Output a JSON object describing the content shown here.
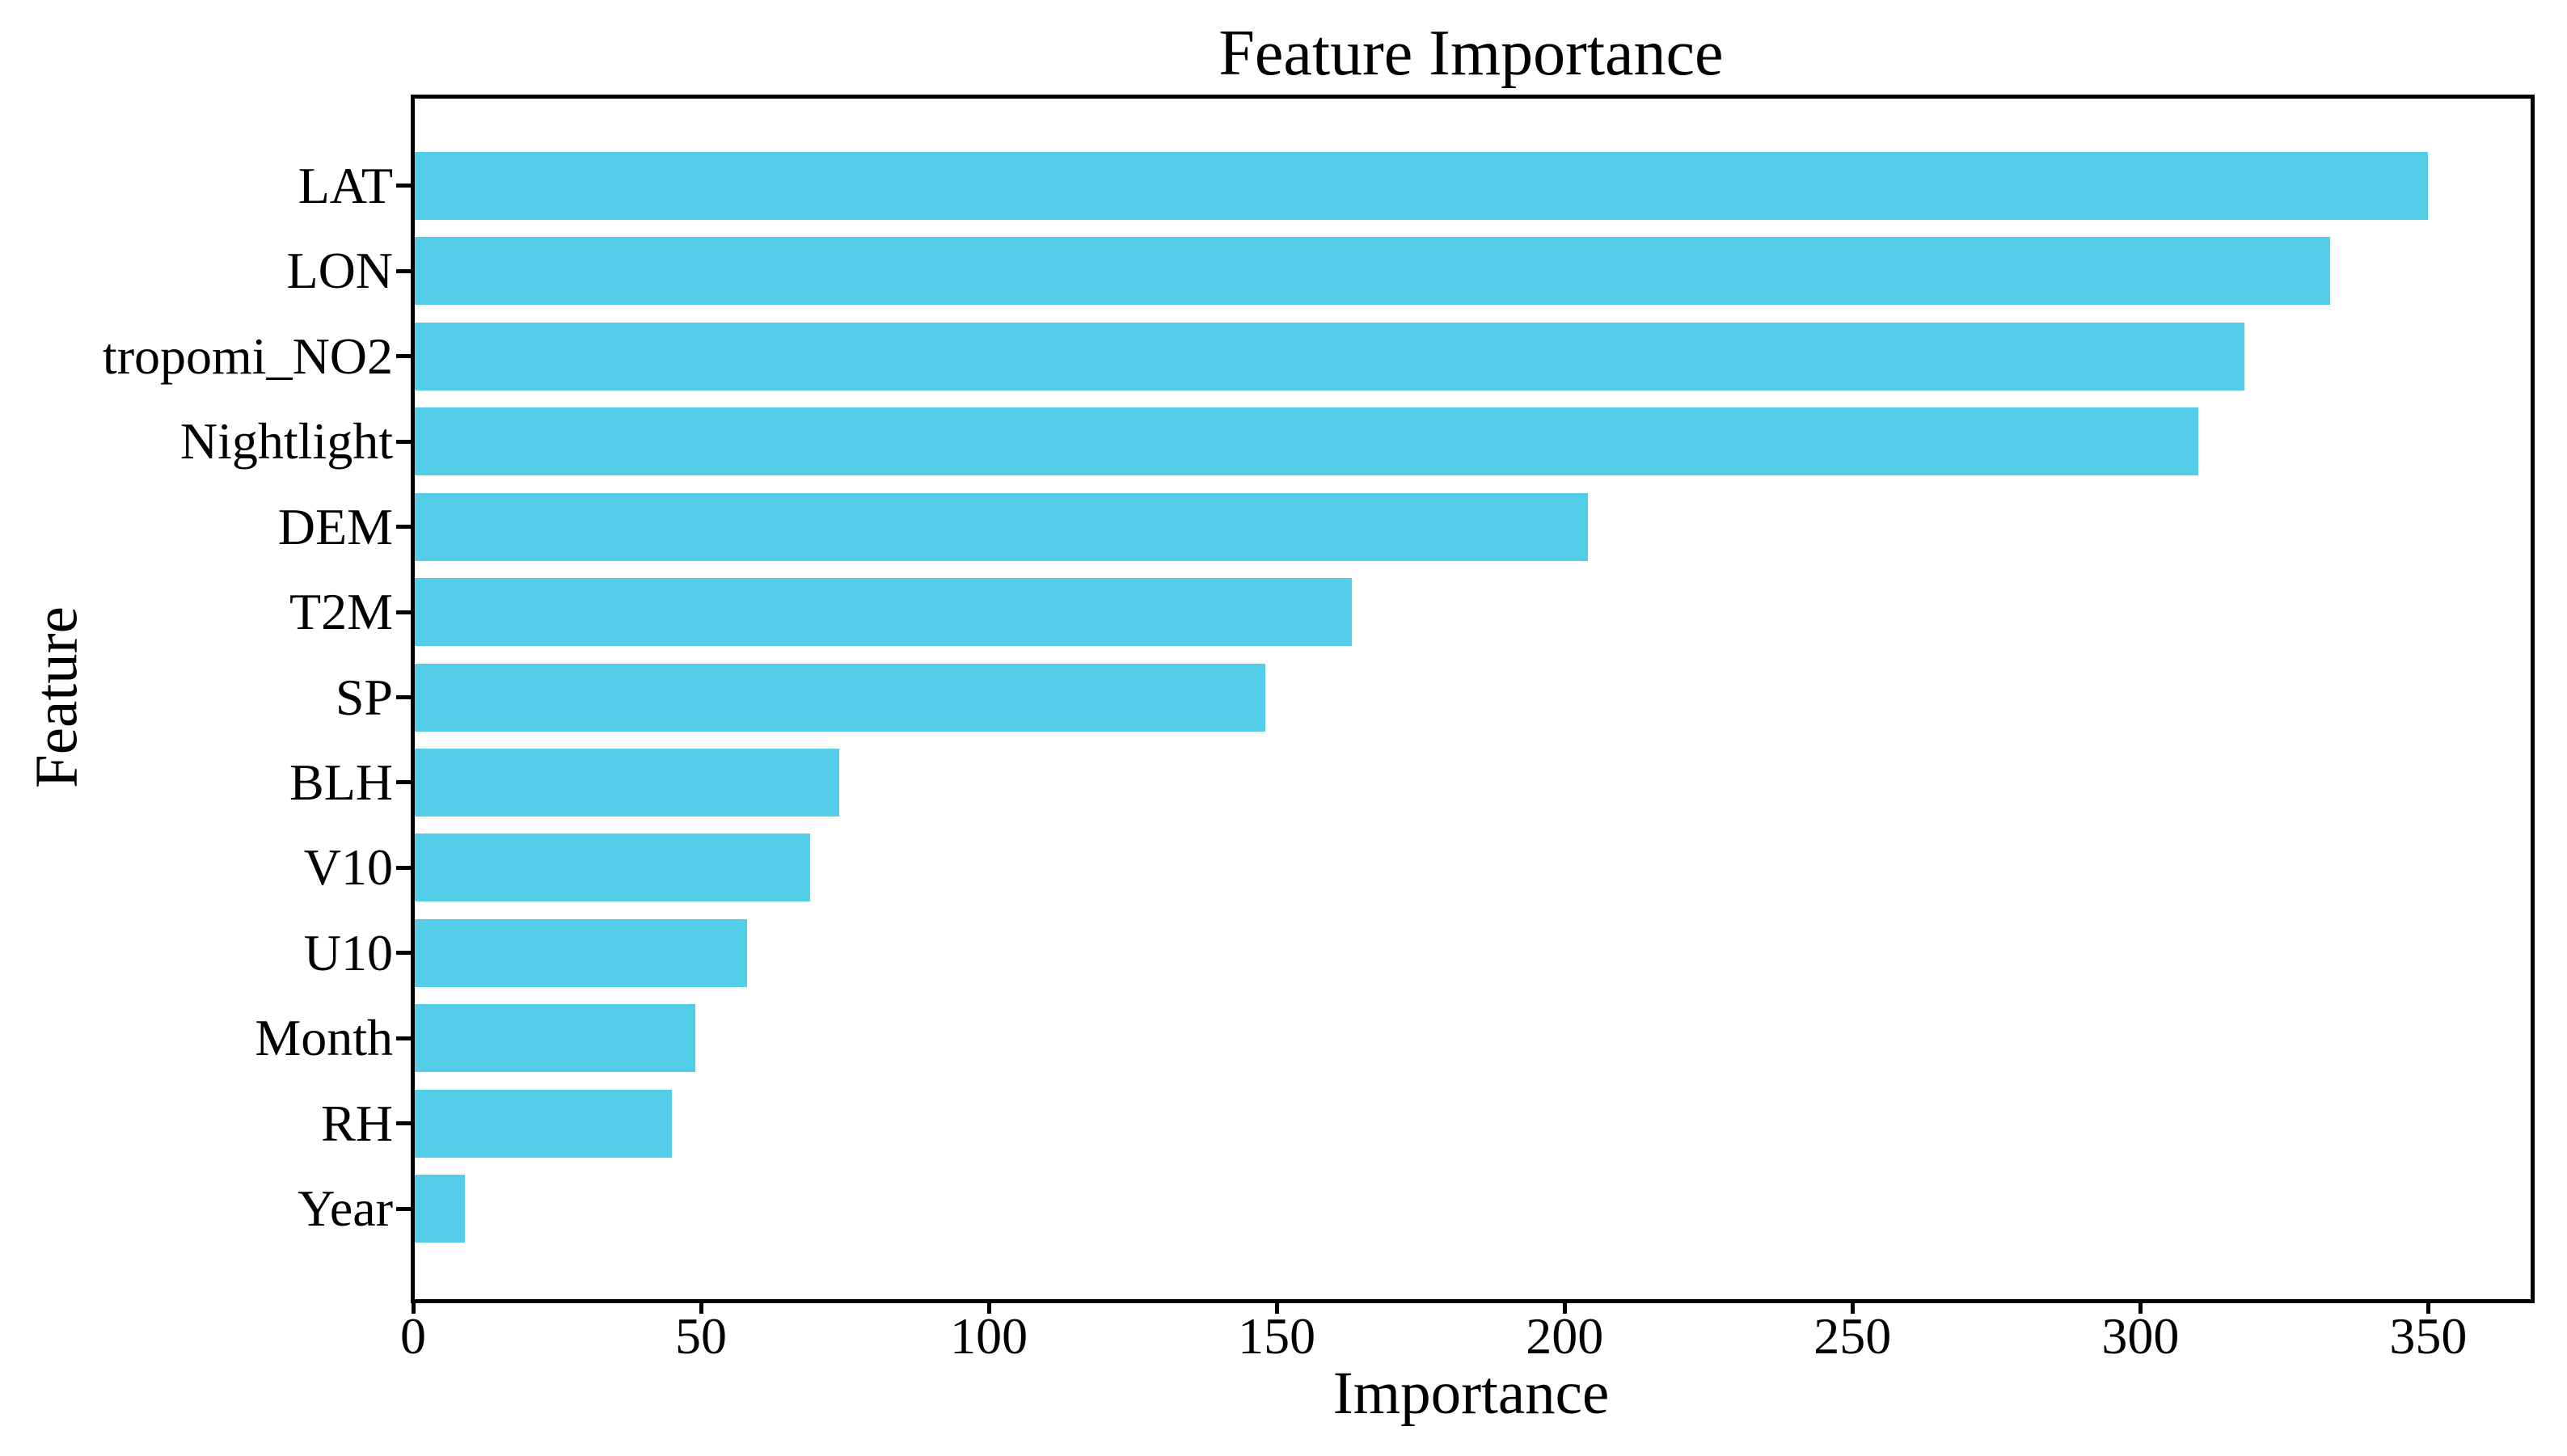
{
  "figure": {
    "background": "#ffffff",
    "text_color": "#000000",
    "spine_color": "#000000"
  },
  "chart_data": {
    "type": "bar",
    "orientation": "horizontal",
    "title": "Feature Importance",
    "xlabel": "Importance",
    "ylabel": "Feature",
    "categories": [
      "LAT",
      "LON",
      "tropomi_NO2",
      "Nightlight",
      "DEM",
      "T2M",
      "SP",
      "BLH",
      "V10",
      "U10",
      "Month",
      "RH",
      "Year"
    ],
    "values": [
      350,
      333,
      318,
      310,
      204,
      163,
      148,
      74,
      69,
      58,
      49,
      45,
      9
    ],
    "xticks": [
      0,
      50,
      100,
      150,
      200,
      250,
      300,
      350
    ],
    "xlim": [
      0,
      367.5
    ],
    "bar_color": "#53cde8",
    "grid": false,
    "legend": null
  }
}
